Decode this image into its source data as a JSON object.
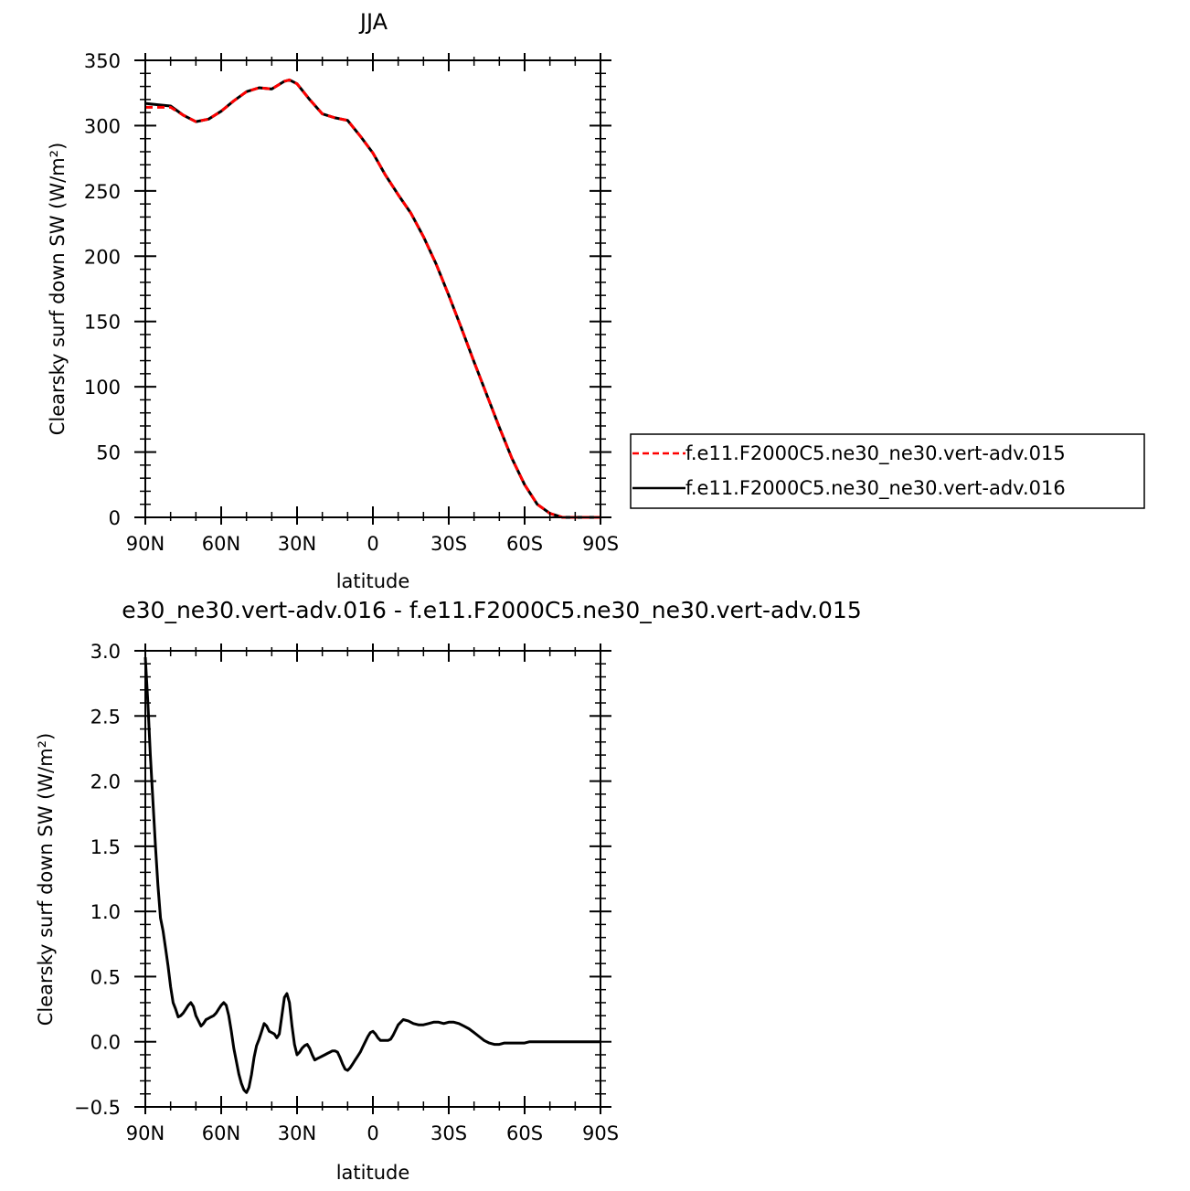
{
  "chart_data": [
    {
      "type": "line",
      "title": "JJA",
      "xlabel": "latitude",
      "ylabel": "Clearsky surf down SW (W/m²)",
      "xlim": [
        90,
        -90
      ],
      "ylim": [
        0,
        350
      ],
      "x_ticks": [
        90,
        60,
        30,
        0,
        -30,
        -60,
        -90
      ],
      "x_tick_labels": [
        "90N",
        "60N",
        "30N",
        "0",
        "30S",
        "60S",
        "90S"
      ],
      "y_ticks": [
        0,
        50,
        100,
        150,
        200,
        250,
        300,
        350
      ],
      "y_tick_labels": [
        "0",
        "50",
        "100",
        "150",
        "200",
        "250",
        "300",
        "350"
      ],
      "grid": false,
      "legend_position": "right",
      "series": [
        {
          "name": "f.e11.F2000C5.ne30_ne30.vert-adv.015",
          "color": "#ff0000",
          "dash": "dashed",
          "x": [
            90,
            85,
            80,
            75,
            70,
            65,
            60,
            55,
            50,
            45,
            40,
            35,
            33,
            30,
            25,
            20,
            15,
            10,
            5,
            0,
            -5,
            -10,
            -15,
            -20,
            -25,
            -30,
            -35,
            -40,
            -45,
            -50,
            -55,
            -60,
            -65,
            -70,
            -75,
            -80,
            -85,
            -90
          ],
          "y": [
            314,
            314,
            314,
            308,
            303,
            305,
            311,
            319,
            326,
            329,
            328,
            334,
            335,
            332,
            320,
            309,
            306,
            304,
            292,
            279,
            262,
            247,
            233,
            215,
            194,
            170,
            145,
            119,
            94,
            69,
            45,
            25,
            10,
            3,
            0,
            0,
            0,
            0
          ]
        },
        {
          "name": "f.e11.F2000C5.ne30_ne30.vert-adv.016",
          "color": "#000000",
          "dash": "solid",
          "x": [
            90,
            85,
            80,
            75,
            70,
            65,
            60,
            55,
            50,
            45,
            40,
            35,
            33,
            30,
            25,
            20,
            15,
            10,
            5,
            0,
            -5,
            -10,
            -15,
            -20,
            -25,
            -30,
            -35,
            -40,
            -45,
            -50,
            -55,
            -60,
            -65,
            -70,
            -75,
            -80,
            -85,
            -90
          ],
          "y": [
            317,
            316,
            315,
            308,
            303,
            305,
            311,
            319,
            326,
            329,
            328,
            334,
            335,
            332,
            320,
            309,
            306,
            304,
            292,
            279,
            262,
            247,
            233,
            215,
            194,
            170,
            145,
            119,
            94,
            69,
            45,
            25,
            10,
            3,
            0,
            0,
            0,
            0
          ]
        }
      ]
    },
    {
      "type": "line",
      "title": "e30_ne30.vert-adv.016 - f.e11.F2000C5.ne30_ne30.vert-adv.015",
      "xlabel": "latitude",
      "ylabel": "Clearsky surf down SW (W/m²)",
      "xlim": [
        90,
        -90
      ],
      "ylim": [
        -0.5,
        3.0
      ],
      "x_ticks": [
        90,
        60,
        30,
        0,
        -30,
        -60,
        -90
      ],
      "x_tick_labels": [
        "90N",
        "60N",
        "30N",
        "0",
        "30S",
        "60S",
        "90S"
      ],
      "y_ticks": [
        -0.5,
        0.0,
        0.5,
        1.0,
        1.5,
        2.0,
        2.5,
        3.0
      ],
      "y_tick_labels": [
        "−0.5",
        "0.0",
        "0.5",
        "1.0",
        "1.5",
        "2.0",
        "2.5",
        "3.0"
      ],
      "grid": false,
      "series": [
        {
          "color": "#000000",
          "dash": "solid",
          "x": [
            90,
            89,
            88,
            87,
            86,
            85,
            84,
            83,
            82,
            81,
            80,
            79,
            78,
            77,
            76,
            75,
            74,
            73,
            72,
            71,
            70,
            69,
            68,
            67,
            66,
            65,
            64,
            63,
            62,
            61,
            60,
            59,
            58,
            57,
            56,
            55,
            54,
            53,
            52,
            51,
            50,
            49,
            48,
            47,
            46,
            45,
            44,
            43,
            42,
            41,
            40,
            39,
            38,
            37,
            36,
            35,
            34,
            33,
            32,
            31,
            30,
            29,
            28,
            27,
            26,
            25,
            24,
            23,
            22,
            21,
            20,
            19,
            18,
            17,
            16,
            15,
            14,
            13,
            12,
            11,
            10,
            9,
            8,
            7,
            6,
            5,
            4,
            3,
            2,
            1,
            0,
            -1,
            -2,
            -3,
            -4,
            -5,
            -6,
            -7,
            -8,
            -9,
            -10,
            -12,
            -14,
            -16,
            -18,
            -20,
            -22,
            -24,
            -26,
            -28,
            -30,
            -32,
            -34,
            -36,
            -38,
            -40,
            -42,
            -44,
            -46,
            -48,
            -50,
            -52,
            -54,
            -56,
            -58,
            -60,
            -62,
            -64,
            -66,
            -70,
            -75,
            -80,
            -85,
            -90
          ],
          "y": [
            2.95,
            2.6,
            2.2,
            1.85,
            1.5,
            1.2,
            0.95,
            0.85,
            0.72,
            0.58,
            0.42,
            0.3,
            0.25,
            0.19,
            0.2,
            0.22,
            0.25,
            0.28,
            0.3,
            0.27,
            0.2,
            0.16,
            0.12,
            0.14,
            0.17,
            0.18,
            0.19,
            0.2,
            0.22,
            0.25,
            0.28,
            0.3,
            0.28,
            0.2,
            0.08,
            -0.05,
            -0.15,
            -0.25,
            -0.32,
            -0.37,
            -0.39,
            -0.35,
            -0.25,
            -0.12,
            -0.03,
            0.02,
            0.08,
            0.14,
            0.12,
            0.08,
            0.07,
            0.06,
            0.03,
            0.06,
            0.2,
            0.34,
            0.37,
            0.3,
            0.12,
            -0.02,
            -0.1,
            -0.08,
            -0.05,
            -0.03,
            -0.02,
            -0.05,
            -0.1,
            -0.14,
            -0.13,
            -0.12,
            -0.11,
            -0.1,
            -0.09,
            -0.08,
            -0.07,
            -0.07,
            -0.08,
            -0.12,
            -0.17,
            -0.21,
            -0.22,
            -0.2,
            -0.17,
            -0.14,
            -0.11,
            -0.08,
            -0.04,
            0.0,
            0.04,
            0.07,
            0.08,
            0.06,
            0.03,
            0.01,
            0.01,
            0.01,
            0.01,
            0.02,
            0.05,
            0.09,
            0.13,
            0.17,
            0.16,
            0.14,
            0.13,
            0.13,
            0.14,
            0.15,
            0.15,
            0.14,
            0.15,
            0.15,
            0.14,
            0.12,
            0.1,
            0.07,
            0.04,
            0.01,
            -0.01,
            -0.02,
            -0.02,
            -0.01,
            -0.01,
            -0.01,
            -0.01,
            -0.01,
            0.0,
            0.0,
            0.0,
            0.0,
            0.0,
            0.0,
            0.0,
            0.0
          ]
        }
      ]
    }
  ]
}
